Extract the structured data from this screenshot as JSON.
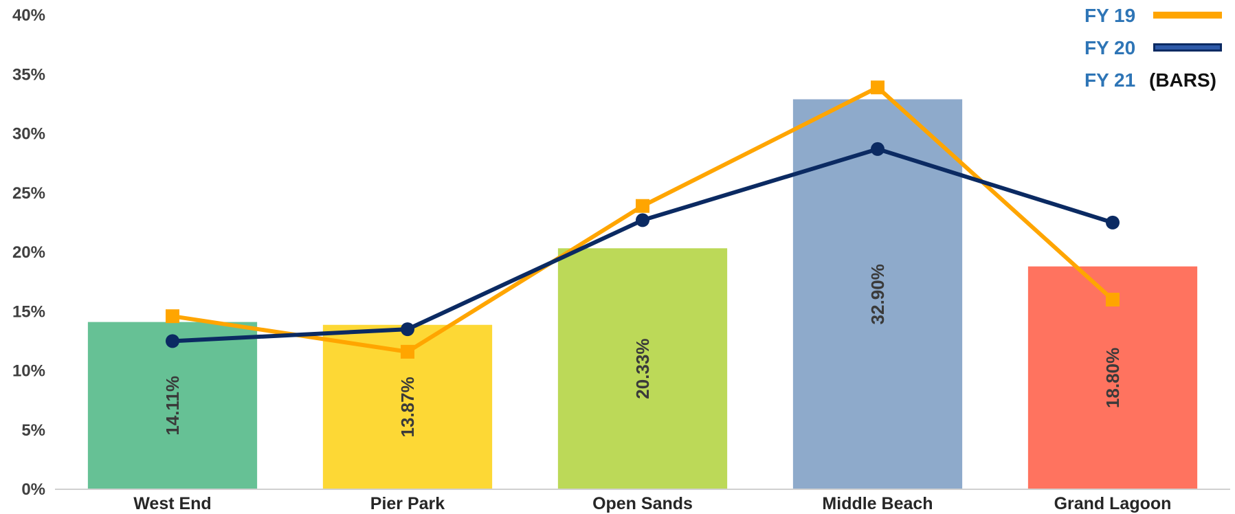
{
  "chart_data": {
    "type": "bar",
    "categories": [
      "West End",
      "Pier Park",
      "Open Sands",
      "Middle Beach",
      "Grand Lagoon"
    ],
    "ylim": [
      0,
      40
    ],
    "yticks": [
      "0%",
      "5%",
      "10%",
      "15%",
      "20%",
      "25%",
      "30%",
      "35%",
      "40%"
    ],
    "grid": false,
    "bars": {
      "name": "FY 21",
      "values": [
        14.11,
        13.87,
        20.33,
        32.9,
        18.8
      ],
      "data_labels": [
        "14.11%",
        "13.87%",
        "20.33%",
        "32.90%",
        "18.80%"
      ],
      "colors": [
        "#66c195",
        "#fdd835",
        "#bcd958",
        "#8eaacb",
        "#ff735f"
      ]
    },
    "lines": [
      {
        "name": "FY 19",
        "type": "line",
        "marker": "square",
        "color": "#ffa500",
        "values": [
          14.6,
          11.6,
          23.9,
          33.9,
          16.0
        ]
      },
      {
        "name": "FY 20",
        "type": "line",
        "marker": "circle",
        "color": "#0b2a62",
        "values": [
          12.5,
          13.5,
          22.7,
          28.7,
          22.5
        ]
      }
    ],
    "legend": {
      "position": "top-right",
      "entries": [
        {
          "label": "FY 19",
          "swatch": "line",
          "color": "#ffa500"
        },
        {
          "label": "FY 20",
          "swatch": "line",
          "color": "#0b2a62"
        },
        {
          "label": "FY 21",
          "note": "(BARS)",
          "swatch": "none",
          "color": "#2e75b6"
        }
      ]
    }
  }
}
